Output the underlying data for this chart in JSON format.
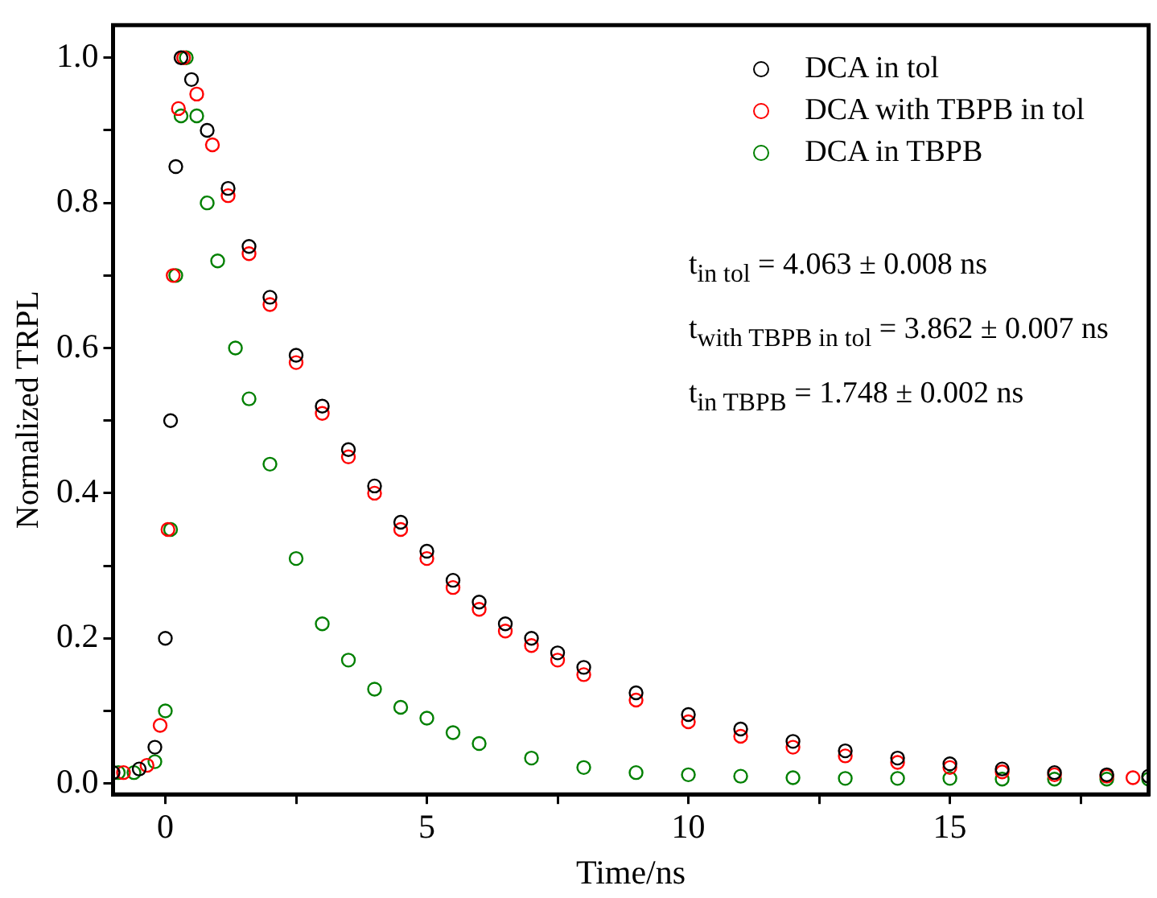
{
  "chart_data": {
    "type": "scatter",
    "xlabel": "Time/ns",
    "ylabel": "Normalized TRPL",
    "xlim": [
      -1,
      18.8
    ],
    "ylim": [
      -0.015,
      1.045
    ],
    "xticks": [
      0,
      {
        "value": 2.5,
        "label": null
      },
      5,
      {
        "value": 7.5,
        "label": null
      },
      10,
      {
        "value": 12.5,
        "label": null
      },
      15,
      {
        "value": 17.5,
        "label": null
      }
    ],
    "yticks": [
      {
        "value": 0,
        "label": "0.0"
      },
      {
        "value": 0.1,
        "label": null
      },
      {
        "value": 0.2,
        "label": "0.2"
      },
      {
        "value": 0.3,
        "label": null
      },
      {
        "value": 0.4,
        "label": "0.4"
      },
      {
        "value": 0.5,
        "label": null
      },
      {
        "value": 0.6,
        "label": "0.6"
      },
      {
        "value": 0.7,
        "label": null
      },
      {
        "value": 0.8,
        "label": "0.8"
      },
      {
        "value": 0.9,
        "label": null
      },
      {
        "value": 1,
        "label": "1.0"
      }
    ],
    "grid": false,
    "legend": "top right",
    "marker": "circle",
    "series": [
      {
        "name": "DCA in tol",
        "color": "#000000",
        "x": [
          -1,
          -0.5,
          -0.2,
          0,
          0.1,
          0.2,
          0.3,
          0.5,
          0.8,
          1.2,
          1.6,
          2,
          2.5,
          3,
          3.5,
          4,
          4.5,
          5,
          5.5,
          6,
          6.5,
          7,
          7.5,
          8,
          9,
          10,
          11,
          12,
          13,
          14,
          15,
          16,
          17,
          18,
          18.8
        ],
        "values": [
          0.015,
          0.02,
          0.05,
          0.2,
          0.5,
          0.85,
          1.0,
          0.97,
          0.9,
          0.82,
          0.74,
          0.67,
          0.59,
          0.52,
          0.46,
          0.41,
          0.36,
          0.32,
          0.28,
          0.25,
          0.22,
          0.2,
          0.18,
          0.16,
          0.125,
          0.095,
          0.075,
          0.058,
          0.045,
          0.035,
          0.027,
          0.02,
          0.015,
          0.012,
          0.01
        ]
      },
      {
        "name": "DCA with TBPB in tol",
        "color": "#ff0000",
        "x": [
          -0.8,
          -0.35,
          -0.1,
          0.05,
          0.15,
          0.25,
          0.35,
          0.6,
          0.9,
          1.2,
          1.6,
          2,
          2.5,
          3,
          3.5,
          4,
          4.5,
          5,
          5.5,
          6,
          6.5,
          7,
          7.5,
          8,
          9,
          10,
          11,
          12,
          13,
          14,
          15,
          16,
          17,
          18,
          18.5
        ],
        "values": [
          0.015,
          0.025,
          0.08,
          0.35,
          0.7,
          0.93,
          1.0,
          0.95,
          0.88,
          0.81,
          0.73,
          0.66,
          0.58,
          0.51,
          0.45,
          0.4,
          0.35,
          0.31,
          0.27,
          0.24,
          0.21,
          0.19,
          0.17,
          0.15,
          0.115,
          0.085,
          0.065,
          0.05,
          0.038,
          0.029,
          0.022,
          0.016,
          0.012,
          0.01,
          0.008
        ]
      },
      {
        "name": "DCA in TBPB",
        "color": "#008000",
        "x": [
          -0.9,
          -0.6,
          -0.2,
          0,
          0.1,
          0.2,
          0.3,
          0.4,
          0.6,
          0.8,
          1,
          1.34,
          1.6,
          2,
          2.5,
          3,
          3.5,
          4,
          4.5,
          5,
          5.5,
          6,
          7,
          8,
          9,
          10,
          11,
          12,
          13,
          14,
          15,
          16,
          17,
          18,
          18.8
        ],
        "values": [
          0.015,
          0.015,
          0.03,
          0.1,
          0.35,
          0.7,
          0.92,
          1.0,
          0.92,
          0.8,
          0.72,
          0.6,
          0.53,
          0.44,
          0.31,
          0.22,
          0.17,
          0.13,
          0.105,
          0.09,
          0.07,
          0.055,
          0.035,
          0.022,
          0.015,
          0.012,
          0.01,
          0.008,
          0.007,
          0.007,
          0.007,
          0.006,
          0.006,
          0.006,
          0.006
        ]
      }
    ],
    "annotations": [
      "t$_{in tol}$ = 4.063 ± 0.008 ns",
      "t$_{with TBPB in tol}$ = 3.862 ± 0.007 ns",
      "t$_{in TBPB}$ = 1.748 ± 0.002 ns"
    ]
  }
}
